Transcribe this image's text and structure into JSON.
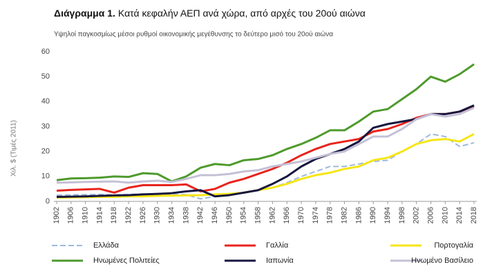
{
  "chart_data": {
    "type": "line",
    "title_label": "Διάγραμμα 1.",
    "title": "Κατά κεφαλήν ΑΕΠ ανά χώρα, από αρχές του 20ού αιώνα",
    "subtitle": "Υψηλοί παγκοσμίως μέσοι ρυθμοί οικονομικής μεγέθυνσης το δεύτερο μισό του 20ού αιώνα",
    "y_label": "Χιλ. $ (Τιμές 2011)",
    "x": [
      1902,
      1906,
      1910,
      1914,
      1918,
      1922,
      1926,
      1930,
      1934,
      1938,
      1942,
      1946,
      1950,
      1954,
      1958,
      1962,
      1966,
      1970,
      1974,
      1978,
      1982,
      1986,
      1990,
      1994,
      1998,
      2002,
      2006,
      2010,
      2014,
      2018
    ],
    "xlim": [
      1902,
      2018
    ],
    "xticks": [
      1902,
      1906,
      1910,
      1914,
      1918,
      1922,
      1926,
      1930,
      1934,
      1938,
      1942,
      1946,
      1950,
      1954,
      1958,
      1962,
      1966,
      1970,
      1974,
      1978,
      1982,
      1986,
      1990,
      1994,
      1998,
      2002,
      2006,
      2010,
      2014,
      2018
    ],
    "ylim": [
      0,
      60
    ],
    "yticks": [
      0,
      10,
      20,
      30,
      40,
      50,
      60
    ],
    "grid": false,
    "series": [
      {
        "name": "Ελλάδα",
        "color": "#9db8de",
        "dash": true,
        "values": [
          2.5,
          2.6,
          2.7,
          2.8,
          2.6,
          2.8,
          3,
          3,
          2.8,
          2.7,
          1,
          2,
          3,
          3.5,
          4.5,
          5.5,
          7.5,
          10,
          12,
          14,
          14,
          15,
          16,
          16.5,
          20,
          23,
          27,
          26,
          22,
          23.5
        ]
      },
      {
        "name": "Γαλλία",
        "color": "#e8231c",
        "values": [
          4.3,
          4.6,
          4.8,
          5,
          3.5,
          5.5,
          6.5,
          6.5,
          6.5,
          6.8,
          4,
          5,
          7.5,
          9,
          11,
          13,
          15.5,
          18.5,
          21,
          23,
          24,
          25,
          28,
          29,
          31,
          33.5,
          35,
          35,
          36,
          38
        ]
      },
      {
        "name": "Πορτογαλία",
        "color": "#f5e614",
        "values": [
          1.5,
          1.6,
          1.7,
          1.8,
          1.8,
          2,
          2,
          2.2,
          2.3,
          2.4,
          2.5,
          2.8,
          3,
          3.5,
          4.5,
          5.5,
          7,
          9,
          10.5,
          11.5,
          13,
          14,
          16.5,
          17.5,
          20,
          23,
          24.5,
          25,
          24,
          27
        ]
      },
      {
        "name": "Ηνωμένες Πολιτείες",
        "color": "#4e9a2c",
        "values": [
          8.5,
          9.2,
          9.3,
          9.5,
          10,
          9.8,
          11.3,
          11,
          8,
          10,
          13.5,
          15,
          14.5,
          16.5,
          17,
          18.5,
          21,
          23,
          25.5,
          28.5,
          28.5,
          32,
          36,
          37,
          41,
          45,
          50,
          48,
          51,
          55
        ]
      },
      {
        "name": "Ιαπωνία",
        "color": "#15163f",
        "values": [
          1.8,
          1.9,
          2,
          2.2,
          2.4,
          2.5,
          2.8,
          3,
          3.3,
          4,
          4.5,
          2,
          2.5,
          3.5,
          4.5,
          7,
          10,
          14,
          17,
          19,
          21,
          24,
          29.5,
          31,
          32,
          33,
          35,
          35,
          36,
          38.5
        ]
      },
      {
        "name": "Ηνωμένο Βασίλειο",
        "color": "#c5c0d6",
        "values": [
          7.5,
          7.6,
          7.8,
          7.9,
          8,
          7.5,
          8,
          8.3,
          7.8,
          9,
          10.5,
          10.5,
          11,
          12,
          12.5,
          14,
          15,
          16,
          17.5,
          19,
          20,
          23,
          26,
          26,
          29,
          33,
          35,
          34,
          35,
          37.5
        ]
      }
    ]
  }
}
